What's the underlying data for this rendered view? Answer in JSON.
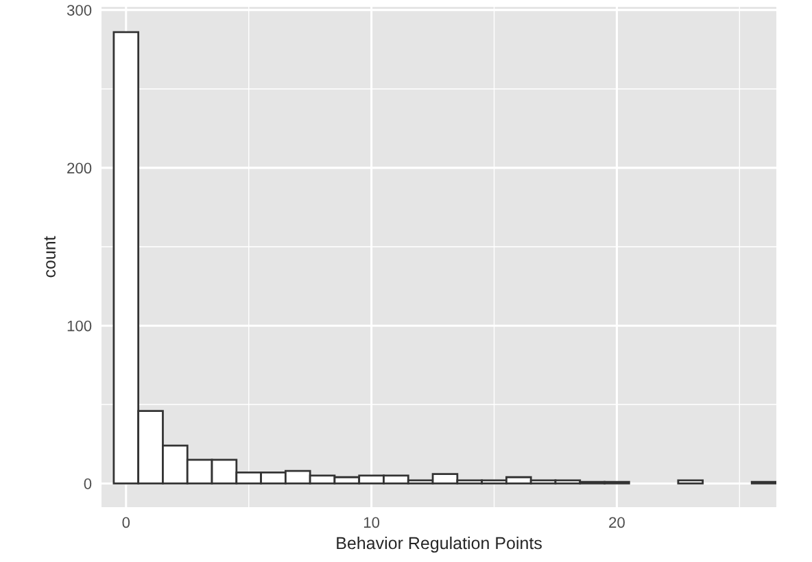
{
  "chart_data": {
    "type": "histogram",
    "xlabel": "Behavior Regulation Points",
    "ylabel": "count",
    "bins": [
      -0.5,
      0.5,
      1.5,
      2.5,
      3.5,
      4.5,
      5.5,
      6.5,
      7.5,
      8.5,
      9.5,
      10.5,
      11.5,
      12.5,
      13.5,
      14.5,
      15.5,
      16.5,
      17.5,
      18.5,
      19.5,
      20.5,
      21.5,
      22.5,
      23.5,
      24.5,
      25.5,
      26.5
    ],
    "values": [
      286,
      46,
      24,
      15,
      15,
      7,
      7,
      8,
      5,
      4,
      5,
      5,
      2,
      6,
      2,
      2,
      4,
      2,
      2,
      1,
      1,
      0,
      0,
      2,
      0,
      0,
      1
    ],
    "color": "#ffffff",
    "xlim": [
      -1,
      26.5
    ],
    "ylim": [
      -15,
      302
    ],
    "xticks": [
      0,
      10,
      20
    ],
    "yticks": [
      0,
      100,
      200,
      300
    ],
    "grid": true
  }
}
